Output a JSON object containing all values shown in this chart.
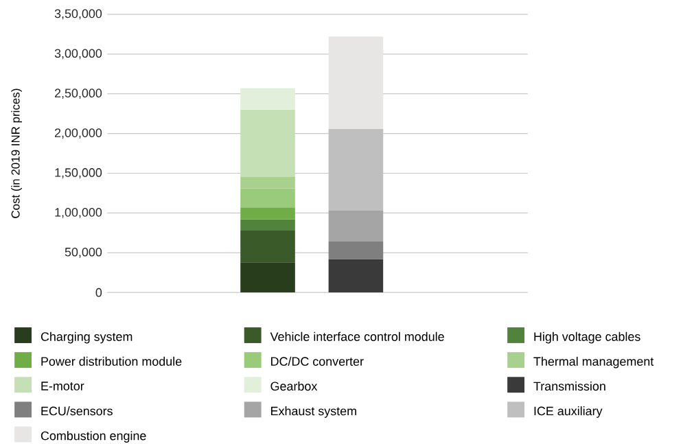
{
  "chart_data": {
    "type": "bar",
    "stacked": true,
    "ylabel": "Cost (in 2019 INR prices)",
    "categories": [
      null,
      null
    ],
    "ylim": [
      0,
      350000
    ],
    "yticks": [
      0,
      {
        "value": 50000,
        "label": "50,000"
      },
      {
        "value": 100000,
        "label": "1,00,000"
      },
      {
        "value": 150000,
        "label": "1,50,000"
      },
      {
        "value": 200000,
        "label": "2,00,000"
      },
      {
        "value": 250000,
        "label": "2,50,000"
      },
      {
        "value": 300000,
        "label": "3,00,000"
      },
      {
        "value": 350000,
        "label": "3,50,000"
      }
    ],
    "grid": "y",
    "legend": "bottom",
    "series": [
      {
        "name": "Charging system",
        "color": "#283d1c",
        "values": [
          38000,
          null
        ]
      },
      {
        "name": "Vehicle interface control module",
        "color": "#3a5a2a",
        "values": [
          40000,
          null
        ]
      },
      {
        "name": "High voltage cables",
        "color": "#52833d",
        "values": [
          14000,
          null
        ]
      },
      {
        "name": "Power distribution module",
        "color": "#70ad47",
        "values": [
          15000,
          null
        ]
      },
      {
        "name": "DC/DC converter",
        "color": "#99cb7a",
        "values": [
          24000,
          null
        ]
      },
      {
        "name": "Thermal management",
        "color": "#a9d18e",
        "values": [
          15000,
          null
        ]
      },
      {
        "name": "E-motor",
        "color": "#c5e0b4",
        "values": [
          84000,
          null
        ]
      },
      {
        "name": "Gearbox",
        "color": "#e2efda",
        "values": [
          27000,
          null
        ]
      },
      {
        "name": "Transmission",
        "color": "#3b3a3b",
        "values": [
          null,
          42000
        ]
      },
      {
        "name": "ECU/sensors",
        "color": "#7f7f7f",
        "values": [
          null,
          22000
        ]
      },
      {
        "name": "Exhaust system",
        "color": "#a5a5a5",
        "values": [
          null,
          39000
        ]
      },
      {
        "name": "ICE auxiliary",
        "color": "#bfbfbf",
        "values": [
          null,
          103000
        ]
      },
      {
        "name": "Combustion engine",
        "color": "#e7e6e5",
        "values": [
          null,
          116000
        ]
      }
    ]
  }
}
